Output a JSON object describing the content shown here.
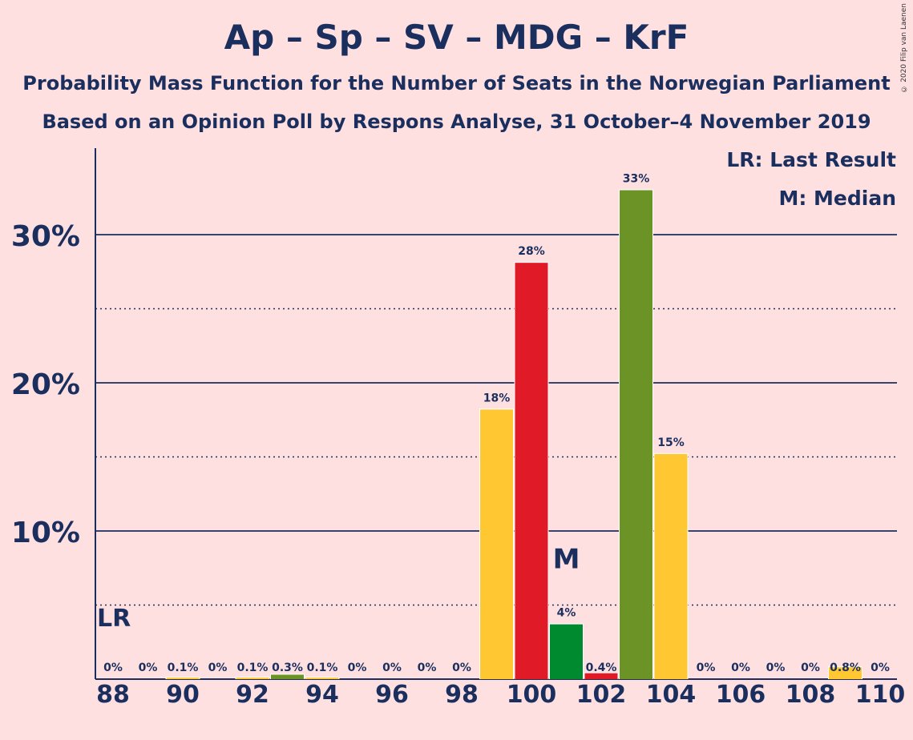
{
  "title": "Ap – Sp – SV – MDG – KrF",
  "subtitle1": "Probability Mass Function for the Number of Seats in the Norwegian Parliament",
  "subtitle2": "Based on an Opinion Poll by Respons Analyse, 31 October–4 November 2019",
  "copyright": "© 2020 Filip van Laenen",
  "legend": {
    "last_result": "LR: Last Result",
    "median": "M: Median"
  },
  "markers": {
    "last_result_label": "LR",
    "median_label": "M"
  },
  "colors": {
    "background": "#ffe0e1",
    "text": "#1a2f5e",
    "yellow": "#ffc832",
    "red": "#e11a27",
    "green_dark": "#008a30",
    "olive": "#6b9326"
  },
  "chart_data": {
    "type": "bar",
    "x": [
      88,
      89,
      90,
      91,
      92,
      93,
      94,
      95,
      96,
      97,
      98,
      99,
      100,
      101,
      102,
      103,
      104,
      105,
      106,
      107,
      108,
      109,
      110
    ],
    "values": [
      0,
      0,
      0.1,
      0,
      0.1,
      0.3,
      0.1,
      0,
      0,
      0,
      0,
      18.2,
      28.1,
      3.7,
      0.4,
      33.0,
      15.2,
      0,
      0,
      0,
      0,
      0.8,
      0
    ],
    "data_labels": [
      "0%",
      "0%",
      "0.1%",
      "0%",
      "0.1%",
      "0.3%",
      "0.1%",
      "0%",
      "0%",
      "0%",
      "0%",
      "18%",
      "28%",
      "4%",
      "0.4%",
      "33%",
      "15%",
      "0%",
      "0%",
      "0%",
      "0%",
      "0.8%",
      "0%"
    ],
    "bar_colors": [
      "yellow",
      "yellow",
      "yellow",
      "yellow",
      "yellow",
      "olive",
      "yellow",
      "yellow",
      "yellow",
      "yellow",
      "yellow",
      "yellow",
      "red",
      "green_dark",
      "red",
      "olive",
      "yellow",
      "yellow",
      "yellow",
      "yellow",
      "yellow",
      "yellow",
      "yellow"
    ],
    "x_ticks": [
      88,
      90,
      92,
      94,
      96,
      98,
      100,
      102,
      104,
      106,
      108,
      110
    ],
    "y_ticks": [
      10,
      20,
      30
    ],
    "y_tick_labels": [
      "10%",
      "20%",
      "30%"
    ],
    "y_minor_ticks": [
      5,
      15,
      25
    ],
    "ylim": [
      0,
      36
    ],
    "last_result_seat": 88,
    "median_seat": 101,
    "legend_position": "top-right"
  }
}
